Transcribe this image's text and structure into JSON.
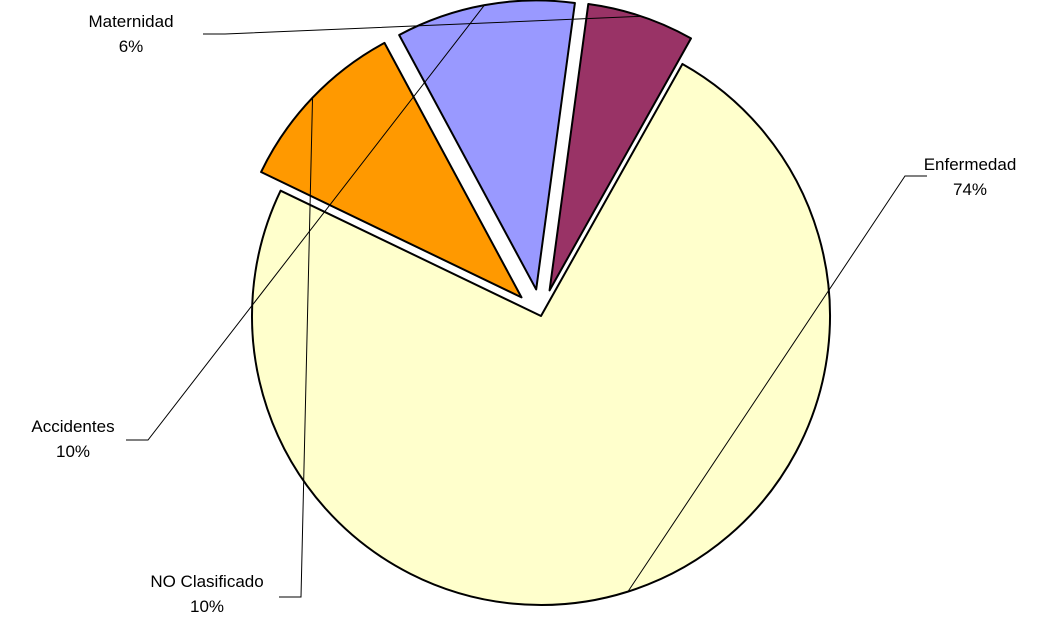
{
  "chart_data": {
    "type": "pie",
    "title": "",
    "slices": [
      {
        "name": "Enfermedad",
        "value": 74,
        "percent_label": "74%",
        "color": "#FFFFCC",
        "exploded": false
      },
      {
        "name": "NO Clasificado",
        "value": 10,
        "percent_label": "10%",
        "color": "#FF9900",
        "exploded": true
      },
      {
        "name": "Accidentes",
        "value": 10,
        "percent_label": "10%",
        "color": "#9999FF",
        "exploded": true
      },
      {
        "name": "Maternidad",
        "value": 6,
        "percent_label": "6%",
        "color": "#993366",
        "exploded": true
      }
    ],
    "legend": "none",
    "data_labels": "outside-with-leader-lines"
  }
}
